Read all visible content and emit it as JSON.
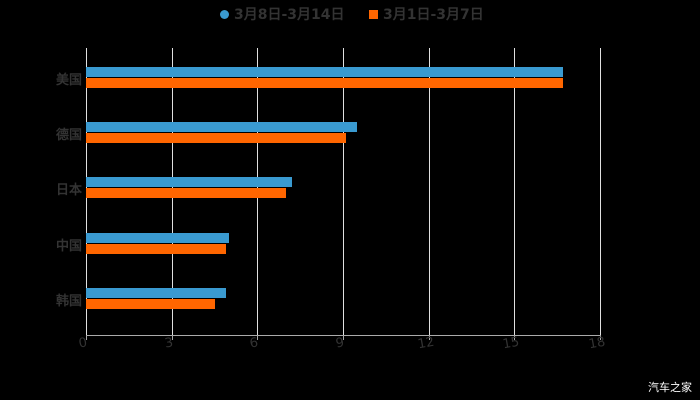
{
  "chart_data": {
    "type": "bar",
    "orientation": "horizontal",
    "title": "",
    "xlabel": "",
    "ylabel": "",
    "categories": [
      "美国",
      "德国",
      "日本",
      "中国",
      "韩国"
    ],
    "series": [
      {
        "name": "3月8日-3月14日",
        "color": "#3a9ad0",
        "marker": "circle",
        "values": [
          16.7,
          9.5,
          7.2,
          5.0,
          4.9
        ]
      },
      {
        "name": "3月1日-3月7日",
        "color": "#ff6600",
        "marker": "square",
        "values": [
          16.7,
          9.1,
          7.0,
          4.9,
          4.5
        ]
      }
    ],
    "xlim": [
      0,
      18
    ],
    "xticks": [
      "0",
      "3",
      "6",
      "9",
      "12",
      "15",
      "18"
    ],
    "grid": true,
    "legend_position": "top"
  },
  "legend": {
    "items": [
      {
        "label": "3月8日-3月14日"
      },
      {
        "label": "3月1日-3月7日"
      }
    ]
  },
  "watermark": "汽车之家"
}
